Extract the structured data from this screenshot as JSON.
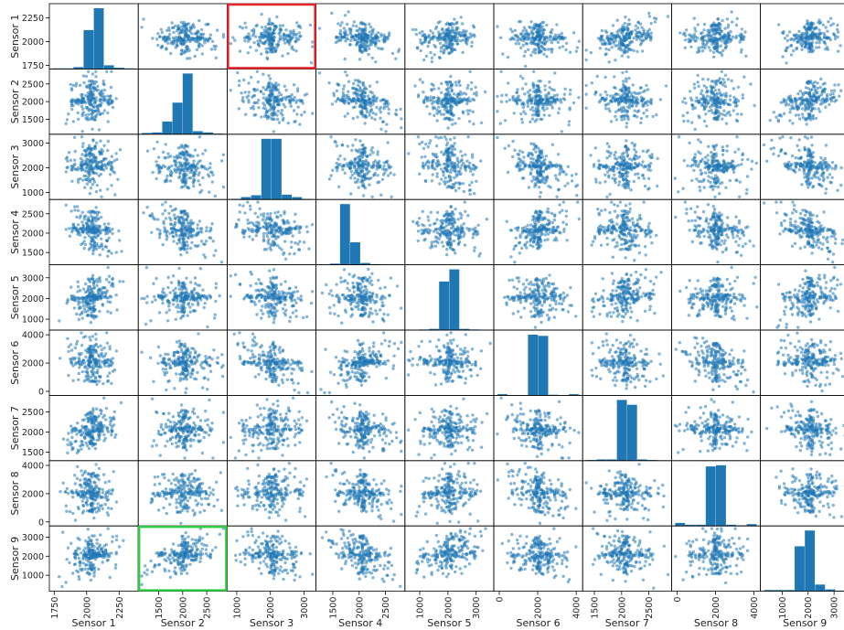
{
  "chart_data": {
    "type": "scatter",
    "title": "",
    "marker_color": "#1f77b4",
    "highlight_colors": {
      "red": "#e8242c",
      "green": "#2ecc40"
    },
    "highlights": [
      {
        "row": 0,
        "col": 2,
        "color": "red"
      },
      {
        "row": 8,
        "col": 1,
        "color": "green"
      }
    ],
    "variables": [
      {
        "name": "Sensor 1",
        "range": [
          1740,
          2370
        ],
        "yticks": [
          1750,
          2000,
          2250
        ],
        "xticks": [
          1750,
          2000,
          2250
        ],
        "center": 2040,
        "spread": 95,
        "core_spread": 22
      },
      {
        "name": "Sensor 2",
        "range": [
          1150,
          2850
        ],
        "yticks": [
          1500,
          2000,
          2500
        ],
        "xticks": [
          1500,
          2000,
          2500
        ],
        "center": 2030,
        "spread": 330,
        "core_spread": 55
      },
      {
        "name": "Sensor 3",
        "range": [
          820,
          3250
        ],
        "yticks": [
          1000,
          2000,
          3000
        ],
        "xticks": [
          1000,
          2000,
          3000
        ],
        "center": 2050,
        "spread": 520,
        "core_spread": 90
      },
      {
        "name": "Sensor 4",
        "range": [
          1250,
          2800
        ],
        "yticks": [
          1500,
          2000,
          2500
        ],
        "xticks": [
          1500,
          2000,
          2500
        ],
        "center": 2070,
        "spread": 300,
        "core_spread": 50
      },
      {
        "name": "Sensor 5",
        "range": [
          600,
          3500
        ],
        "yticks": [
          1000,
          2000,
          3000
        ],
        "xticks": [
          1000,
          2000,
          3000
        ],
        "center": 2050,
        "spread": 560,
        "core_spread": 90
      },
      {
        "name": "Sensor 6",
        "range": [
          -100,
          4150
        ],
        "yticks": [
          0,
          2000,
          4000
        ],
        "xticks": [
          0,
          2000,
          4000
        ],
        "center": 2040,
        "spread": 820,
        "core_spread": 130
      },
      {
        "name": "Sensor 7",
        "range": [
          1350,
          2850
        ],
        "yticks": [
          1500,
          2000,
          2500
        ],
        "xticks": [
          1500,
          2000,
          2500
        ],
        "center": 2060,
        "spread": 290,
        "core_spread": 55
      },
      {
        "name": "Sensor 8",
        "range": [
          -100,
          4150
        ],
        "yticks": [
          0,
          2000,
          4000
        ],
        "xticks": [
          0,
          2000,
          4000
        ],
        "center": 2040,
        "spread": 820,
        "core_spread": 130
      },
      {
        "name": "Sensor 9",
        "range": [
          300,
          3450
        ],
        "yticks": [
          1000,
          2000,
          3000
        ],
        "xticks": [
          1000,
          2000,
          3000
        ],
        "center": 2070,
        "spread": 600,
        "core_spread": 95
      }
    ],
    "correlations": [
      [
        1.0,
        0.0,
        -0.1,
        -0.5,
        0.45,
        -0.1,
        0.55,
        0.0,
        0.4
      ],
      [
        0.0,
        1.0,
        -0.3,
        -0.55,
        0.15,
        0.0,
        -0.1,
        0.1,
        0.7
      ],
      [
        -0.1,
        -0.3,
        1.0,
        -0.4,
        -0.35,
        -0.5,
        0.3,
        0.0,
        -0.45
      ],
      [
        -0.5,
        -0.55,
        -0.4,
        1.0,
        -0.1,
        0.6,
        -0.3,
        -0.4,
        -0.55
      ],
      [
        0.45,
        0.15,
        -0.35,
        -0.1,
        1.0,
        0.05,
        0.3,
        0.0,
        0.5
      ],
      [
        -0.1,
        0.0,
        -0.5,
        0.6,
        0.05,
        1.0,
        -0.2,
        -0.4,
        -0.2
      ],
      [
        0.55,
        -0.1,
        0.3,
        -0.3,
        0.3,
        -0.2,
        1.0,
        0.0,
        -0.35
      ],
      [
        0.0,
        0.1,
        0.0,
        -0.4,
        0.0,
        -0.4,
        0.0,
        1.0,
        0.1
      ],
      [
        0.4,
        0.7,
        -0.45,
        -0.55,
        0.5,
        -0.2,
        -0.35,
        0.1,
        1.0
      ]
    ],
    "histograms": [
      [
        0.01,
        0.01,
        0.03,
        0.64,
        1.0,
        0.06,
        0.02,
        0.01
      ],
      [
        0.02,
        0.03,
        0.21,
        0.52,
        1.0,
        0.05,
        0.03,
        0.01
      ],
      [
        0.01,
        0.04,
        0.07,
        1.0,
        1.0,
        0.08,
        0.04,
        0.01
      ],
      [
        0.0,
        0.02,
        1.0,
        0.37,
        0.03,
        0.01,
        0.0,
        0.0
      ],
      [
        0.0,
        0.01,
        0.02,
        0.8,
        1.0,
        0.02,
        0.01,
        0.0
      ],
      [
        0.02,
        0.0,
        0.0,
        1.0,
        0.98,
        0.01,
        0.0,
        0.02
      ],
      [
        0.01,
        0.02,
        0.02,
        1.0,
        0.92,
        0.02,
        0.01,
        0.0
      ],
      [
        0.05,
        0.02,
        0.02,
        0.98,
        1.0,
        0.02,
        0.01,
        0.03
      ],
      [
        0.02,
        0.02,
        0.02,
        0.74,
        1.0,
        0.11,
        0.03,
        0.01
      ]
    ],
    "points_per_panel": 220,
    "grid": false,
    "legend": "none"
  }
}
